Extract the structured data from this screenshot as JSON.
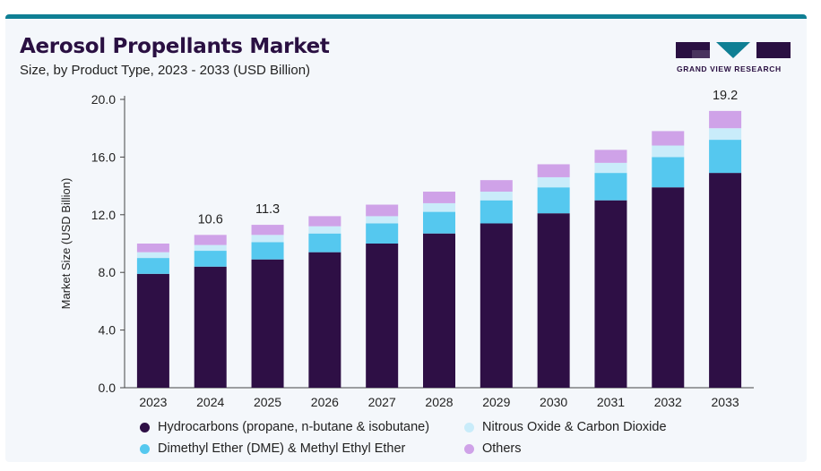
{
  "header": {
    "title": "Aerosol Propellants Market",
    "subtitle": "Size, by Product Type, 2023 - 2033 (USD Billion)",
    "logo_text": "GRAND VIEW RESEARCH"
  },
  "colors": {
    "hydrocarbons": "#2e0f45",
    "dme": "#55c8ef",
    "nitrous": "#c9ecfa",
    "others": "#cfa2e8",
    "brand_teal": "#0f7f94"
  },
  "chart_data": {
    "type": "bar",
    "stacked": true,
    "categories": [
      "2023",
      "2024",
      "2025",
      "2026",
      "2027",
      "2028",
      "2029",
      "2030",
      "2031",
      "2032",
      "2033"
    ],
    "series": [
      {
        "name": "Hydrocarbons (propane, n-butane & isobutane)",
        "color": "#2e0f45",
        "values": [
          7.9,
          8.4,
          8.9,
          9.4,
          10.0,
          10.7,
          11.4,
          12.1,
          13.0,
          13.9,
          14.9
        ]
      },
      {
        "name": "Dimethyl Ether (DME) & Methyl Ethyl Ether",
        "color": "#55c8ef",
        "values": [
          1.1,
          1.1,
          1.2,
          1.3,
          1.4,
          1.5,
          1.6,
          1.8,
          1.9,
          2.1,
          2.3
        ]
      },
      {
        "name": "Nitrous Oxide & Carbon Dioxide",
        "color": "#c9ecfa",
        "values": [
          0.4,
          0.4,
          0.5,
          0.5,
          0.5,
          0.6,
          0.6,
          0.7,
          0.7,
          0.8,
          0.8
        ]
      },
      {
        "name": "Others",
        "color": "#cfa2e8",
        "values": [
          0.6,
          0.7,
          0.7,
          0.7,
          0.8,
          0.8,
          0.8,
          0.9,
          0.9,
          1.0,
          1.2
        ]
      }
    ],
    "totals_labels": [
      {
        "category": "2024",
        "label": "10.6"
      },
      {
        "category": "2025",
        "label": "11.3"
      },
      {
        "category": "2033",
        "label": "19.2"
      }
    ],
    "ylabel": "Market Size (USD Billion)",
    "xlabel": "",
    "ylim": [
      0,
      20
    ],
    "yticks": [
      0,
      4,
      8,
      12,
      16,
      20
    ],
    "ytick_labels": [
      "0.0",
      "4.0",
      "8.0",
      "12.0",
      "16.0",
      "20.0"
    ],
    "grid": false,
    "legend_position": "bottom"
  },
  "legend": [
    {
      "label": "Hydrocarbons (propane, n-butane & isobutane)",
      "color": "#2e0f45"
    },
    {
      "label": "Nitrous Oxide & Carbon Dioxide",
      "color": "#c9ecfa"
    },
    {
      "label": "Dimethyl Ether (DME) & Methyl Ethyl Ether",
      "color": "#55c8ef"
    },
    {
      "label": "Others",
      "color": "#cfa2e8"
    }
  ]
}
